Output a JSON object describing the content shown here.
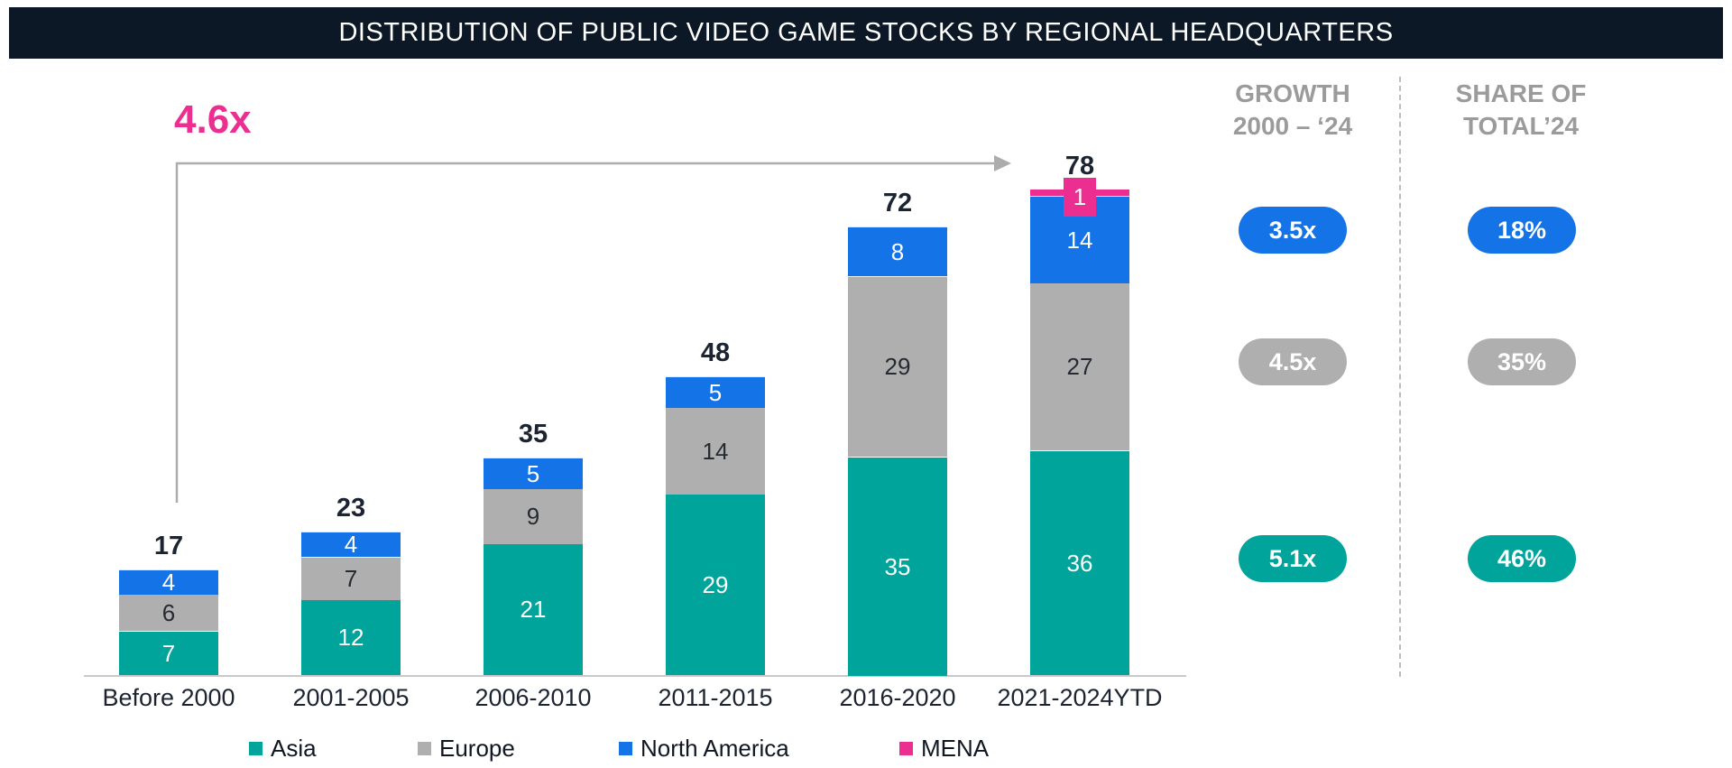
{
  "title": "DISTRIBUTION OF PUBLIC VIDEO GAME STOCKS BY REGIONAL HEADQUARTERS",
  "annotation": {
    "label": "4.6x"
  },
  "colors": {
    "asia": "#00A49B",
    "europe": "#AFAFAF",
    "north_america": "#1473E6",
    "mena": "#ED2E91",
    "title_bg": "#0D1826",
    "annotation_pink": "#ED2E91",
    "muted_text": "#9B9B9B",
    "dark_text": "#1B2430",
    "arrow_gray": "#ACACAC"
  },
  "chart_data": {
    "type": "bar",
    "stacked": true,
    "title": "DISTRIBUTION OF PUBLIC VIDEO GAME STOCKS BY REGIONAL HEADQUARTERS",
    "categories": [
      "Before 2000",
      "2001-2005",
      "2006-2010",
      "2011-2015",
      "2016-2020",
      "2021-2024YTD"
    ],
    "series": [
      {
        "name": "Asia",
        "color": "#00A49B",
        "values": [
          7,
          12,
          21,
          29,
          35,
          36
        ]
      },
      {
        "name": "Europe",
        "color": "#AFAFAF",
        "values": [
          6,
          7,
          9,
          14,
          29,
          27
        ]
      },
      {
        "name": "North America",
        "color": "#1473E6",
        "values": [
          4,
          4,
          5,
          5,
          8,
          14
        ]
      },
      {
        "name": "MENA",
        "color": "#ED2E91",
        "values": [
          0,
          0,
          0,
          0,
          0,
          1
        ]
      }
    ],
    "totals": [
      17,
      23,
      35,
      48,
      72,
      78
    ],
    "annotations": [
      "4.6x growth arrow from Before 2000 to 2021-2024YTD"
    ],
    "legend_position": "bottom",
    "ylim": [
      0,
      80
    ],
    "grid": false
  },
  "legend": {
    "items": [
      {
        "label": "Asia",
        "color": "#00A49B"
      },
      {
        "label": "Europe",
        "color": "#AFAFAF"
      },
      {
        "label": "North America",
        "color": "#1473E6"
      },
      {
        "label": "MENA",
        "color": "#ED2E91"
      }
    ]
  },
  "right_panel": {
    "growth_header": [
      "GROWTH",
      "2000 – ‘24"
    ],
    "share_header": [
      "SHARE OF",
      "TOTAL’24"
    ],
    "growth_badges": [
      {
        "label": "3.5x",
        "color": "#1473E6"
      },
      {
        "label": "4.5x",
        "color": "#AFAFAF"
      },
      {
        "label": "5.1x",
        "color": "#00A49B"
      }
    ],
    "share_badges": [
      {
        "label": "18%",
        "color": "#1473E6"
      },
      {
        "label": "35%",
        "color": "#AFAFAF"
      },
      {
        "label": "46%",
        "color": "#00A49B"
      }
    ]
  }
}
